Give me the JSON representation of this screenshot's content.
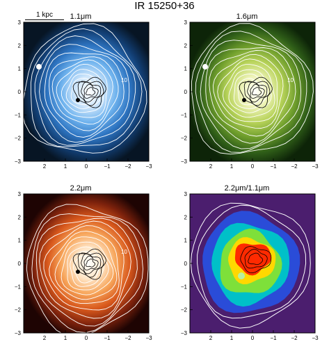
{
  "title": "IR 15250+36",
  "scale_bar": {
    "label": "1 kpc"
  },
  "panels": [
    {
      "title": "1.1μm",
      "contour_label": "10",
      "colormap": "blue"
    },
    {
      "title": "1.6μm",
      "contour_label": "10",
      "colormap": "green"
    },
    {
      "title": "2.2μm",
      "contour_label": "10",
      "colormap": "orange"
    },
    {
      "title": "2.2μm/1.1μm",
      "contour_label": "",
      "colormap": "rainbow"
    }
  ],
  "axes": {
    "x_ticks": [
      "2",
      "1",
      "0",
      "−1",
      "−2",
      "−3"
    ],
    "y_ticks": [
      "3",
      "2",
      "1",
      "0",
      "−1",
      "−2",
      "−3"
    ]
  },
  "colors": {
    "blue": [
      "#ffffff",
      "#cfe6fb",
      "#6fb3ee",
      "#2e75c2",
      "#123e73",
      "#071524"
    ],
    "green": [
      "#ffffff",
      "#eef3b8",
      "#b8d35a",
      "#6f9e2c",
      "#2f5e18",
      "#0d2408"
    ],
    "orange": [
      "#ffffff",
      "#ffe6c8",
      "#f7a55a",
      "#d8581c",
      "#7e220c",
      "#1e0403"
    ],
    "rainbow": [
      "#ff0000",
      "#ff6a00",
      "#ffdc00",
      "#5ce03a",
      "#00c8b4",
      "#1e64ff",
      "#3a2cc8",
      "#4b2a7a"
    ]
  }
}
